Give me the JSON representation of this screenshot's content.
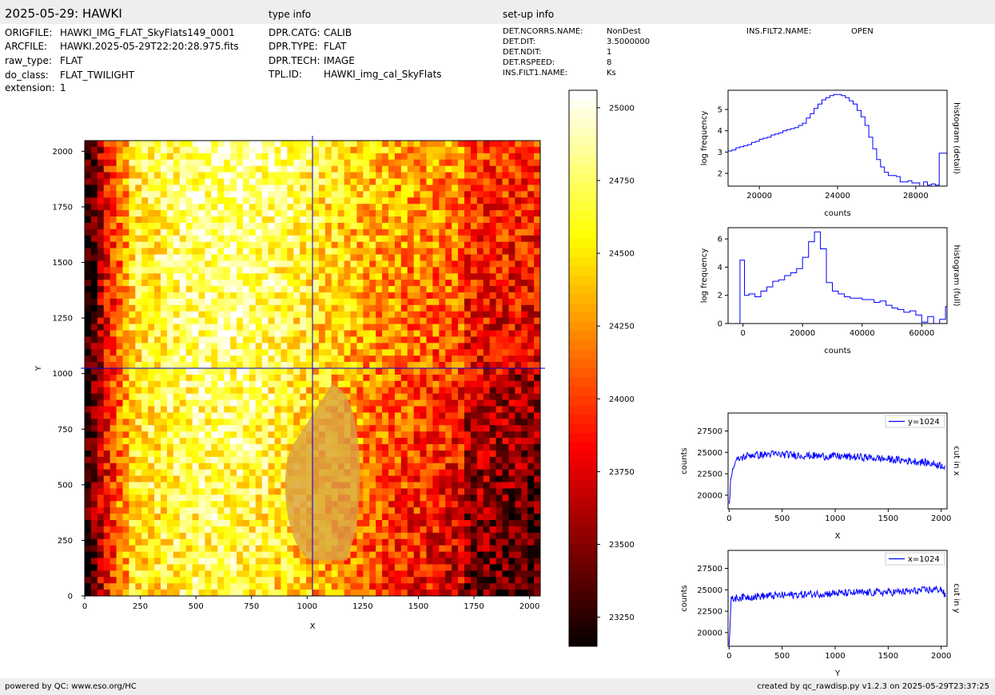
{
  "header": {
    "title": "2025-05-29: HAWKI",
    "type_info_label": "type info",
    "setup_info_label": "set-up info"
  },
  "file_info": [
    {
      "key": "ORIGFILE:",
      "value": "HAWKI_IMG_FLAT_SkyFlats149_0001"
    },
    {
      "key": "ARCFILE:",
      "value": "HAWKI.2025-05-29T22:20:28.975.fits"
    },
    {
      "key": "raw_type:",
      "value": "FLAT"
    },
    {
      "key": "do_class:",
      "value": "FLAT_TWILIGHT"
    },
    {
      "key": "extension:",
      "value": "1"
    }
  ],
  "type_info": [
    {
      "key": "DPR.CATG:",
      "value": "CALIB"
    },
    {
      "key": "DPR.TYPE:",
      "value": "FLAT"
    },
    {
      "key": "DPR.TECH:",
      "value": "IMAGE"
    },
    {
      "key": "TPL.ID:",
      "value": "HAWKI_img_cal_SkyFlats"
    }
  ],
  "setup_info": [
    {
      "key": "DET.NCORRS.NAME:",
      "value": "NonDest"
    },
    {
      "key": "DET.DIT:",
      "value": "3.5000000"
    },
    {
      "key": "DET.NDIT:",
      "value": "1"
    },
    {
      "key": "DET.RSPEED:",
      "value": "8"
    },
    {
      "key": "INS.FILT1.NAME:",
      "value": "Ks"
    }
  ],
  "setup_info_right": [
    {
      "key": "INS.FILT2.NAME:",
      "value": "OPEN"
    }
  ],
  "footer": {
    "left": "powered by QC: www.eso.org/HC",
    "right": "created by qc_rawdisp.py v1.2.3 on 2025-05-29T23:37:25"
  },
  "colors": {
    "band": "#eeeeee",
    "line": "#0000ff",
    "crosshair": "#0000cc"
  },
  "chart_data": [
    {
      "type": "heatmap",
      "name": "image",
      "xlabel": "X",
      "ylabel": "Y",
      "xlim": [
        0,
        2048
      ],
      "ylim": [
        0,
        2048
      ],
      "xticks": [
        0,
        250,
        500,
        750,
        1000,
        1250,
        1500,
        1750,
        2000
      ],
      "yticks": [
        0,
        250,
        500,
        750,
        1000,
        1250,
        1500,
        1750,
        2000
      ],
      "crosshair": {
        "x": 1024,
        "y": 1024
      },
      "colormap": "hot",
      "colorbar": {
        "range": [
          23150,
          25060
        ],
        "ticks": [
          23250,
          23500,
          23750,
          24000,
          24250,
          24500,
          24750,
          25000
        ]
      }
    },
    {
      "type": "line",
      "name": "histogram-detail",
      "xlabel": "counts",
      "ylabel": "log frequency",
      "side_label": "histogram (detail)",
      "xlim": [
        18400,
        29600
      ],
      "ylim": [
        1.4,
        5.9
      ],
      "xticks": [
        20000,
        24000,
        28000
      ],
      "yticks": [
        2,
        3,
        4,
        5
      ],
      "x": [
        18400,
        18600,
        18800,
        19000,
        19200,
        19400,
        19600,
        19800,
        20000,
        20200,
        20400,
        20600,
        20800,
        21000,
        21200,
        21400,
        21600,
        21800,
        22000,
        22200,
        22400,
        22600,
        22800,
        23000,
        23200,
        23400,
        23600,
        23800,
        24000,
        24200,
        24400,
        24600,
        24800,
        25000,
        25200,
        25400,
        25600,
        25800,
        26000,
        26200,
        26400,
        26600,
        26800,
        27000,
        27200,
        27400,
        27600,
        27800,
        28000,
        28200,
        28400,
        28600,
        28800,
        29000,
        29200,
        29400
      ],
      "y": [
        3.05,
        3.1,
        3.2,
        3.25,
        3.3,
        3.35,
        3.45,
        3.5,
        3.6,
        3.65,
        3.7,
        3.8,
        3.85,
        3.9,
        4.0,
        4.05,
        4.1,
        4.15,
        4.25,
        4.35,
        4.6,
        4.8,
        5.05,
        5.25,
        5.45,
        5.55,
        5.65,
        5.7,
        5.7,
        5.65,
        5.55,
        5.4,
        5.25,
        4.95,
        4.65,
        4.25,
        3.7,
        3.15,
        2.65,
        2.3,
        2.05,
        1.9,
        1.9,
        1.85,
        1.6,
        1.6,
        1.65,
        1.55,
        1.55,
        1.4,
        1.6,
        1.45,
        1.5,
        1.45,
        2.95,
        2.95
      ]
    },
    {
      "type": "line",
      "name": "histogram-full",
      "xlabel": "counts",
      "ylabel": "log frequency",
      "side_label": "histogram (full)",
      "xlim": [
        -5000,
        68500
      ],
      "ylim": [
        0,
        6.8
      ],
      "xticks": [
        0,
        20000,
        40000,
        60000
      ],
      "yticks": [
        0,
        2,
        4,
        6
      ],
      "x": [
        -1500,
        -1000,
        500,
        2000,
        4000,
        6000,
        8000,
        10000,
        12000,
        14000,
        16000,
        18000,
        20000,
        22000,
        24000,
        26000,
        28000,
        30000,
        32000,
        34000,
        36000,
        38000,
        40000,
        42000,
        44000,
        46000,
        48000,
        50000,
        52000,
        54000,
        56000,
        58000,
        60000,
        62000,
        64000,
        66000,
        68000
      ],
      "y": [
        0,
        4.5,
        2.0,
        2.1,
        1.9,
        2.3,
        2.6,
        3.0,
        3.1,
        3.4,
        3.6,
        3.9,
        4.7,
        5.8,
        6.5,
        5.3,
        2.9,
        2.3,
        2.1,
        1.9,
        1.8,
        1.8,
        1.7,
        1.7,
        1.5,
        1.6,
        1.3,
        1.1,
        1.0,
        0.8,
        0.9,
        0.6,
        0.1,
        0.5,
        0.0,
        0.3,
        1.2
      ]
    },
    {
      "type": "line",
      "name": "cut-in-x",
      "xlabel": "X",
      "ylabel": "counts",
      "side_label": "cut in x",
      "legend": "y=1024",
      "legend_position": "top-right",
      "xlim": [
        -10,
        2055
      ],
      "ylim": [
        18400,
        29600
      ],
      "xticks": [
        0,
        500,
        1000,
        1500,
        2000
      ],
      "yticks": [
        20000,
        22500,
        25000,
        27500
      ],
      "x": [
        0,
        20,
        40,
        60,
        80,
        100,
        150,
        200,
        300,
        400,
        500,
        600,
        700,
        800,
        900,
        1000,
        1100,
        1200,
        1300,
        1400,
        1500,
        1600,
        1700,
        1800,
        1900,
        2000,
        2040
      ],
      "y": [
        19000,
        22500,
        23200,
        23800,
        24100,
        24300,
        24500,
        24700,
        24700,
        24800,
        24750,
        24700,
        24650,
        24600,
        24550,
        24550,
        24500,
        24450,
        24400,
        24300,
        24200,
        24100,
        24000,
        23900,
        23700,
        23500,
        23400
      ],
      "noise": 450
    },
    {
      "type": "line",
      "name": "cut-in-y",
      "xlabel": "Y",
      "ylabel": "counts",
      "side_label": "cut in y",
      "legend": "x=1024",
      "legend_position": "top-right",
      "xlim": [
        -10,
        2055
      ],
      "ylim": [
        18400,
        29600
      ],
      "xticks": [
        0,
        500,
        1000,
        1500,
        2000
      ],
      "yticks": [
        20000,
        22500,
        25000,
        27500
      ],
      "x": [
        0,
        20,
        50,
        100,
        200,
        300,
        400,
        500,
        600,
        700,
        800,
        900,
        1000,
        1100,
        1200,
        1300,
        1400,
        1500,
        1600,
        1700,
        1800,
        1900,
        2000,
        2040
      ],
      "y": [
        18500,
        23800,
        24000,
        24100,
        24200,
        24250,
        24300,
        24350,
        24400,
        24450,
        24500,
        24550,
        24600,
        24600,
        24650,
        24650,
        24700,
        24700,
        24750,
        24800,
        24900,
        25000,
        25100,
        24200
      ],
      "noise": 450
    }
  ]
}
